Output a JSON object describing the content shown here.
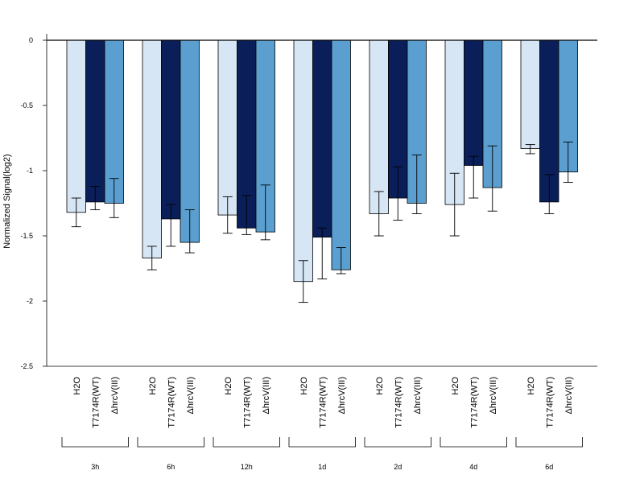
{
  "chart_data": {
    "type": "bar",
    "title": "",
    "xlabel": "",
    "ylabel": "Normalized Signal(log2)",
    "ylim": [
      -2.5,
      0.05
    ],
    "yticks": [
      0,
      -0.5,
      -1,
      -1.5,
      -2,
      -2.5
    ],
    "ytick_labels": [
      "0",
      "-0.5",
      "-1",
      "-1.5",
      "-2",
      "-2.5"
    ],
    "grid": false,
    "groups": [
      "3h",
      "6h",
      "12h",
      "1d",
      "2d",
      "4d",
      "6d"
    ],
    "series": [
      {
        "name": "H2O",
        "color": "#d7e6f5",
        "values": [
          -1.32,
          -1.67,
          -1.34,
          -1.85,
          -1.33,
          -1.26,
          -0.83
        ],
        "err_low": [
          -1.43,
          -1.76,
          -1.48,
          -2.01,
          -1.5,
          -1.5,
          -0.87
        ],
        "err_high": [
          -1.21,
          -1.58,
          -1.2,
          -1.69,
          -1.16,
          -1.02,
          -0.8
        ]
      },
      {
        "name": "T7174R(WT)",
        "color": "#0a1f5a",
        "values": [
          -1.24,
          -1.37,
          -1.44,
          -1.51,
          -1.21,
          -0.96,
          -1.24
        ],
        "err_low": [
          -1.3,
          -1.58,
          -1.49,
          -1.83,
          -1.38,
          -1.21,
          -1.33
        ],
        "err_high": [
          -1.12,
          -1.26,
          -1.19,
          -1.44,
          -0.97,
          -0.89,
          -1.03
        ]
      },
      {
        "name": "ΔhrcV(III)",
        "color": "#5a9fcf",
        "values": [
          -1.25,
          -1.55,
          -1.47,
          -1.76,
          -1.25,
          -1.13,
          -1.01
        ],
        "err_low": [
          -1.36,
          -1.63,
          -1.53,
          -1.79,
          -1.33,
          -1.31,
          -1.09
        ],
        "err_high": [
          -1.06,
          -1.3,
          -1.11,
          -1.59,
          -0.88,
          -0.81,
          -0.78
        ]
      }
    ]
  }
}
